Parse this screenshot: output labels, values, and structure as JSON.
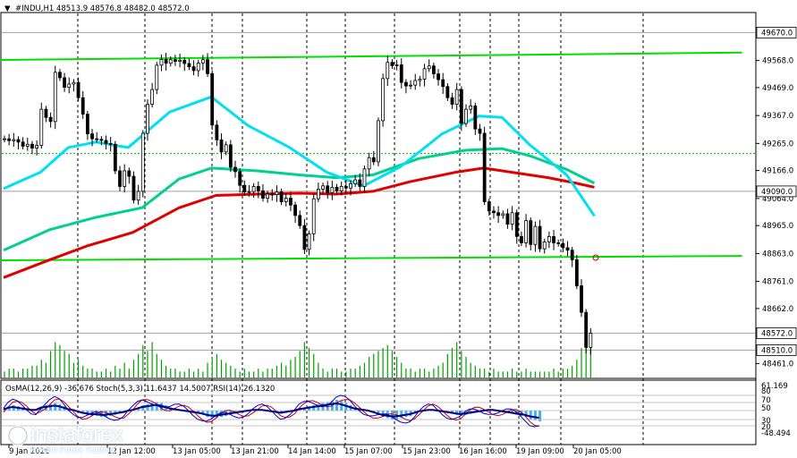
{
  "header": {
    "arrow": "▼",
    "text": "#INDU,H1  48513.9 48576.8 48482.0 48572.0"
  },
  "indicator_header": "OsMA(12,26,9) -36.676  Stoch(5,3,3) 11.6437 14.5007  RSI(14) 26.1320",
  "logo": {
    "name": "instaforex",
    "tagline": "Instant Forex Trading"
  },
  "colors": {
    "background": "#ffffff",
    "candle": "#000000",
    "volume": "#00a000",
    "channel": "#00e000",
    "ma_fast": "#00e0f0",
    "ma_mid": "#00d090",
    "ma_slow": "#e00000",
    "osma": "#40b0f0",
    "stoch_main": "#0000cc",
    "stoch_signal": "#cc0000",
    "rsi": "#000080",
    "grid": "#000000",
    "hline": "#a0a0a0"
  },
  "chart_data": {
    "type": "candlestick",
    "symbol": "#INDU",
    "timeframe": "H1",
    "last_ohlc": {
      "open": 48513.9,
      "high": 48576.8,
      "low": 48482.0,
      "close": 48572.0
    },
    "ylim": [
      48410,
      49740
    ],
    "y_ticks": [
      49670.0,
      49568.0,
      49469.0,
      49367.0,
      49265.0,
      49166.0,
      49090.0,
      49064.0,
      48965.0,
      48863.0,
      48761.0,
      48662.0,
      48572.0,
      48510.0,
      48461.0
    ],
    "x_ticks": [
      "9 Jan 2026",
      "12 Jan 12:00",
      "13 Jan 05:00",
      "13 Jan 21:00",
      "14 Jan 14:00",
      "15 Jan 07:00",
      "15 Jan 23:00",
      "16 Jan 16:00",
      "19 Jan 09:00",
      "20 Jan 05:00"
    ],
    "price_tags": [
      {
        "value": 49670.0,
        "label": "49670.0"
      },
      {
        "value": 49090.0,
        "label": "49090.0"
      },
      {
        "value": 48572.0,
        "label": "48572.0"
      },
      {
        "value": 48510.0,
        "label": "48510.0"
      }
    ],
    "horizontal_lines": [
      49670.0,
      49090.0,
      48572.0,
      48510.0
    ],
    "channel_upper": [
      [
        0,
        49570
      ],
      [
        160,
        49597
      ]
    ],
    "channel_lower": [
      [
        0,
        48838
      ],
      [
        160,
        48854
      ]
    ],
    "closes": [
      49282,
      49275,
      49279,
      49270,
      49255,
      49262,
      49248,
      49258,
      49390,
      49360,
      49345,
      49525,
      49505,
      49470,
      49482,
      49488,
      49432,
      49372,
      49300,
      49282,
      49280,
      49276,
      49265,
      49262,
      49165,
      49108,
      49165,
      49145,
      49058,
      49090,
      49302,
      49408,
      49462,
      49551,
      49572,
      49558,
      49571,
      49565,
      49569,
      49557,
      49545,
      49531,
      49559,
      49571,
      49520,
      49332,
      49278,
      49234,
      49260,
      49178,
      49162,
      49112,
      49088,
      49089,
      49108,
      49092,
      49065,
      49080,
      49078,
      49088,
      49052,
      49065,
      49040,
      49002,
      48965,
      48878,
      48935,
      49063,
      49098,
      49110,
      49085,
      49105,
      49092,
      49108,
      49102,
      49118,
      49132,
      49108,
      49172,
      49213,
      49198,
      49348,
      49502,
      49561,
      49549,
      49552,
      49488,
      49475,
      49478,
      49495,
      49500,
      49538,
      49548,
      49519,
      49498,
      49473,
      49432,
      49408,
      49462,
      49338,
      49390,
      49402,
      49318,
      49302,
      49052,
      49018,
      49012,
      49002,
      49008,
      48970,
      49012,
      48925,
      48902,
      48983,
      48896,
      48962,
      48880,
      48905,
      48925,
      48902,
      48900,
      48884,
      48875,
      48840,
      48745,
      48648,
      48520,
      48572
    ],
    "ma_fast": [
      [
        0,
        49100
      ],
      [
        8,
        49160
      ],
      [
        14,
        49250
      ],
      [
        20,
        49270
      ],
      [
        27,
        49250
      ],
      [
        36,
        49380
      ],
      [
        45,
        49435
      ],
      [
        53,
        49330
      ],
      [
        62,
        49250
      ],
      [
        70,
        49160
      ],
      [
        78,
        49110
      ],
      [
        86,
        49180
      ],
      [
        95,
        49300
      ],
      [
        103,
        49365
      ],
      [
        108,
        49360
      ],
      [
        114,
        49260
      ],
      [
        122,
        49150
      ],
      [
        128,
        49000
      ]
    ],
    "ma_mid": [
      [
        0,
        48875
      ],
      [
        10,
        48950
      ],
      [
        20,
        48995
      ],
      [
        30,
        49030
      ],
      [
        38,
        49135
      ],
      [
        45,
        49175
      ],
      [
        55,
        49165
      ],
      [
        64,
        49150
      ],
      [
        72,
        49140
      ],
      [
        80,
        49150
      ],
      [
        90,
        49210
      ],
      [
        100,
        49240
      ],
      [
        108,
        49246
      ],
      [
        114,
        49220
      ],
      [
        122,
        49170
      ],
      [
        128,
        49120
      ]
    ],
    "ma_slow": [
      [
        0,
        48775
      ],
      [
        10,
        48840
      ],
      [
        18,
        48890
      ],
      [
        28,
        48940
      ],
      [
        38,
        49030
      ],
      [
        46,
        49075
      ],
      [
        55,
        49080
      ],
      [
        64,
        49083
      ],
      [
        72,
        49080
      ],
      [
        80,
        49090
      ],
      [
        88,
        49125
      ],
      [
        98,
        49160
      ],
      [
        104,
        49175
      ],
      [
        110,
        49160
      ],
      [
        118,
        49140
      ],
      [
        124,
        49120
      ],
      [
        128,
        49105
      ]
    ],
    "volume": [
      2,
      3,
      3,
      2,
      3,
      3,
      4,
      4,
      6,
      5,
      9,
      12,
      11,
      9,
      8,
      5,
      6,
      4,
      3,
      3,
      2,
      2,
      3,
      2,
      4,
      3,
      5,
      3,
      6,
      8,
      11,
      9,
      12,
      8,
      6,
      4,
      3,
      3,
      2,
      2,
      3,
      2,
      3,
      2,
      5,
      7,
      8,
      6,
      5,
      4,
      3,
      2,
      3,
      2,
      2,
      3,
      2,
      3,
      3,
      4,
      5,
      4,
      6,
      7,
      9,
      12,
      10,
      8,
      5,
      3,
      2,
      3,
      3,
      2,
      2,
      3,
      3,
      4,
      5,
      7,
      8,
      9,
      10,
      11,
      9,
      7,
      5,
      3,
      3,
      2,
      3,
      3,
      2,
      3,
      4,
      5,
      8,
      10,
      12,
      9,
      7,
      5,
      4,
      3,
      3,
      2,
      3,
      2,
      2,
      2,
      3,
      2,
      2,
      3,
      2,
      2,
      2,
      2,
      2,
      3,
      2,
      3,
      3,
      4,
      6,
      10,
      15,
      12
    ],
    "indicator": {
      "title": "OsMA(12,26,9) -36.676  Stoch(5,3,3) 11.6437 14.5007  RSI(14) 26.1320",
      "right_labels": [
        "61.169",
        "80",
        "70",
        "50",
        "30",
        "20",
        "-48.494"
      ],
      "osma": [
        0.2,
        0.4,
        0.5,
        0.4,
        0.3,
        0.2,
        0.1,
        0.1,
        0.4,
        0.5,
        0.6,
        0.7,
        0.6,
        0.4,
        0.2,
        0.1,
        -0.1,
        -0.3,
        -0.4,
        -0.5,
        -0.5,
        -0.6,
        -0.6,
        -0.5,
        -0.4,
        -0.3,
        -0.2,
        0.0,
        0.1,
        0.3,
        0.5,
        0.6,
        0.7,
        0.8,
        0.7,
        0.5,
        0.3,
        0.2,
        0.1,
        0.0,
        -0.1,
        -0.2,
        -0.3,
        -0.4,
        -0.6,
        -0.7,
        -0.7,
        -0.6,
        -0.5,
        -0.4,
        -0.3,
        -0.2,
        -0.1,
        0.0,
        0.1,
        0.1,
        0.1,
        0.0,
        -0.1,
        -0.2,
        -0.3,
        -0.2,
        -0.1,
        0.0,
        0.2,
        0.3,
        0.4,
        0.5,
        0.6,
        0.7,
        0.8,
        0.9,
        1.0,
        0.9,
        0.7,
        0.5,
        0.3,
        0.2,
        0.1,
        0.0,
        -0.2,
        -0.4,
        -0.6,
        -0.7,
        -0.8,
        -0.8,
        -0.7,
        -0.6,
        -0.5,
        -0.3,
        -0.1,
        0.0,
        0.1,
        0.1,
        0.0,
        -0.1,
        -0.2,
        -0.3,
        -0.4,
        -0.5,
        -0.4,
        -0.3,
        -0.2,
        -0.1,
        0.0,
        0.1,
        0.1,
        0.0,
        -0.1,
        -0.2,
        -0.3,
        -0.4,
        -0.5,
        -0.6,
        -0.8,
        -0.9,
        -1.0
      ]
    }
  }
}
